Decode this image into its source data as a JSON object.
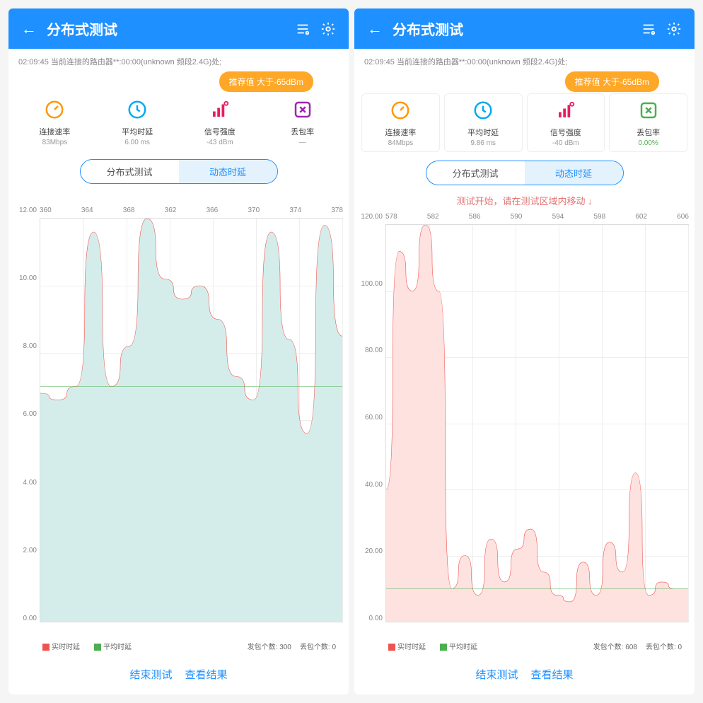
{
  "left": {
    "header": {
      "title": "分布式测试"
    },
    "status": "02:09:45 当前连接的路由器**:00:00(unknown 频段2.4G)处;",
    "badge": "推荐值 大于-65dBm",
    "metrics": [
      {
        "label": "连接速率",
        "value": "83Mbps",
        "color": "#ff9800",
        "icon": "gauge"
      },
      {
        "label": "平均时延",
        "value": "6.00 ms",
        "color": "#03a9f4",
        "icon": "clock"
      },
      {
        "label": "信号强度",
        "value": "-43 dBm",
        "color": "#e91e63",
        "icon": "signal"
      },
      {
        "label": "丢包率",
        "value": "—",
        "color": "#9c27b0",
        "icon": "x"
      }
    ],
    "tabs": {
      "a": "分布式测试",
      "b": "动态时延",
      "active": "b"
    },
    "hint": "",
    "chart": {
      "type": "line",
      "x_labels": [
        "360",
        "364",
        "368",
        "362",
        "366",
        "370",
        "374",
        "378"
      ],
      "ylim": [
        0,
        12
      ],
      "ytick_step": 2,
      "y_labels": [
        "12.00",
        "10.00",
        "8.00",
        "6.00",
        "4.00",
        "2.00",
        "0.00"
      ],
      "fill_color": "#d4edeb",
      "line_color": "#ef5350",
      "baseline_color": "#4caf50",
      "baseline": 7.0,
      "grid_color": "#eeeeee",
      "bg": "#ffffff",
      "values": [
        6.8,
        6.6,
        7.0,
        11.6,
        7.0,
        8.2,
        12.0,
        10.2,
        9.6,
        10.0,
        9.0,
        7.3,
        6.6,
        11.6,
        8.4,
        5.6,
        11.8,
        8.5
      ]
    },
    "legend": {
      "a": "实时时延",
      "a_color": "#ef5350",
      "b": "平均时延",
      "b_color": "#4caf50",
      "stat1_label": "发包个数:",
      "stat1_val": "300",
      "stat2_label": "丢包个数:",
      "stat2_val": "0"
    },
    "footer": {
      "a": "结束测试",
      "b": "查看结果"
    }
  },
  "right": {
    "header": {
      "title": "分布式测试"
    },
    "status": "02:09:45 当前连接的路由器**:00:00(unknown 频段2.4G)处;",
    "badge": "推荐值 大于-65dBm",
    "metrics": [
      {
        "label": "连接速率",
        "value": "84Mbps",
        "color": "#ff9800",
        "icon": "gauge"
      },
      {
        "label": "平均时延",
        "value": "9.86 ms",
        "color": "#03a9f4",
        "icon": "clock"
      },
      {
        "label": "信号强度",
        "value": "-40 dBm",
        "color": "#e91e63",
        "icon": "signal"
      },
      {
        "label": "丢包率",
        "value": "0.00%",
        "color": "#4caf50",
        "icon": "x",
        "green": true
      }
    ],
    "tabs": {
      "a": "分布式测试",
      "b": "动态时延",
      "active": "b"
    },
    "hint": "测试开始，请在测试区域内移动 ↓",
    "chart": {
      "type": "line",
      "x_labels": [
        "578",
        "582",
        "586",
        "590",
        "594",
        "598",
        "602",
        "606"
      ],
      "ylim": [
        0,
        120
      ],
      "ytick_step": 20,
      "y_labels": [
        "120.00",
        "100.00",
        "80.00",
        "60.00",
        "40.00",
        "20.00",
        "0.00"
      ],
      "fill_color": "#fde2e0",
      "line_color": "#ef5350",
      "baseline_color": "#4caf50",
      "baseline": 10,
      "grid_color": "#eeeeee",
      "bg": "#ffffff",
      "values": [
        40,
        112,
        100,
        120,
        100,
        10,
        20,
        8,
        25,
        12,
        22,
        28,
        15,
        8,
        6,
        18,
        8,
        24,
        15,
        45,
        8,
        12,
        10,
        10
      ]
    },
    "legend": {
      "a": "实时时延",
      "a_color": "#ef5350",
      "b": "平均时延",
      "b_color": "#4caf50",
      "stat1_label": "发包个数:",
      "stat1_val": "608",
      "stat2_label": "丢包个数:",
      "stat2_val": "0"
    },
    "footer": {
      "a": "结束测试",
      "b": "查看结果"
    }
  },
  "icons": {
    "gauge_color": "#ff9800",
    "clock_color": "#03a9f4",
    "signal_color": "#e91e63",
    "x_color": "#9c27b0"
  }
}
